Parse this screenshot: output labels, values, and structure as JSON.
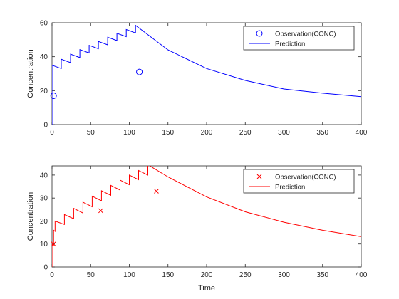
{
  "chart_data": [
    {
      "type": "line",
      "xlabel": "",
      "ylabel": "Concentration",
      "xlim": [
        0,
        400
      ],
      "ylim": [
        0,
        60
      ],
      "xticks": [
        0,
        50,
        100,
        150,
        200,
        250,
        300,
        350,
        400
      ],
      "yticks": [
        0,
        20,
        40,
        60
      ],
      "color": "#0000ff",
      "legend": {
        "placement": "top-right",
        "entries": [
          "Observation(CONC)",
          "Prediction"
        ]
      },
      "observations": {
        "name": "Observation(CONC)",
        "marker": "circle",
        "x": [
          2,
          113
        ],
        "y": [
          17,
          31
        ]
      },
      "prediction": {
        "name": "Prediction",
        "x": [
          0,
          0,
          12,
          12,
          24,
          24,
          36,
          36,
          48,
          48,
          60,
          60,
          72,
          72,
          84,
          84,
          96,
          96,
          108,
          108,
          150,
          200,
          250,
          300,
          350,
          400
        ],
        "y": [
          0,
          35,
          33,
          38.5,
          36.5,
          41.5,
          39.5,
          44.2,
          42.2,
          46.7,
          44.7,
          49,
          47,
          51.5,
          49.5,
          53.8,
          51.8,
          56,
          54,
          58.5,
          44,
          33,
          26,
          21,
          18.5,
          16.5
        ]
      }
    },
    {
      "type": "line",
      "xlabel": "Time",
      "ylabel": "Concentration",
      "xlim": [
        0,
        400
      ],
      "ylim": [
        0,
        44
      ],
      "xticks": [
        0,
        50,
        100,
        150,
        200,
        250,
        300,
        350,
        400
      ],
      "yticks": [
        0,
        10,
        20,
        30,
        40
      ],
      "color": "#ff0000",
      "legend": {
        "placement": "top-right",
        "entries": [
          "Observation(CONC)",
          "Prediction"
        ]
      },
      "observations": {
        "name": "Observation(CONC)",
        "marker": "x",
        "x": [
          2,
          63,
          135
        ],
        "y": [
          10,
          24.5,
          33
        ]
      },
      "prediction": {
        "name": "Prediction",
        "x": [
          0,
          0,
          2,
          2,
          4,
          4,
          16,
          16,
          28,
          28,
          40,
          40,
          52,
          52,
          64,
          64,
          76,
          76,
          88,
          88,
          100,
          100,
          112,
          112,
          124,
          124,
          150,
          200,
          250,
          300,
          350,
          400
        ],
        "y": [
          0,
          10,
          9.5,
          16,
          15.5,
          20,
          18.5,
          22.8,
          21,
          25.5,
          23.5,
          28.2,
          26.2,
          30.8,
          28.8,
          33.2,
          31.2,
          35.5,
          33.5,
          37.8,
          35.8,
          40,
          38,
          42,
          40,
          44.5,
          39.2,
          30.5,
          24,
          19.5,
          16,
          13.2
        ]
      }
    }
  ]
}
